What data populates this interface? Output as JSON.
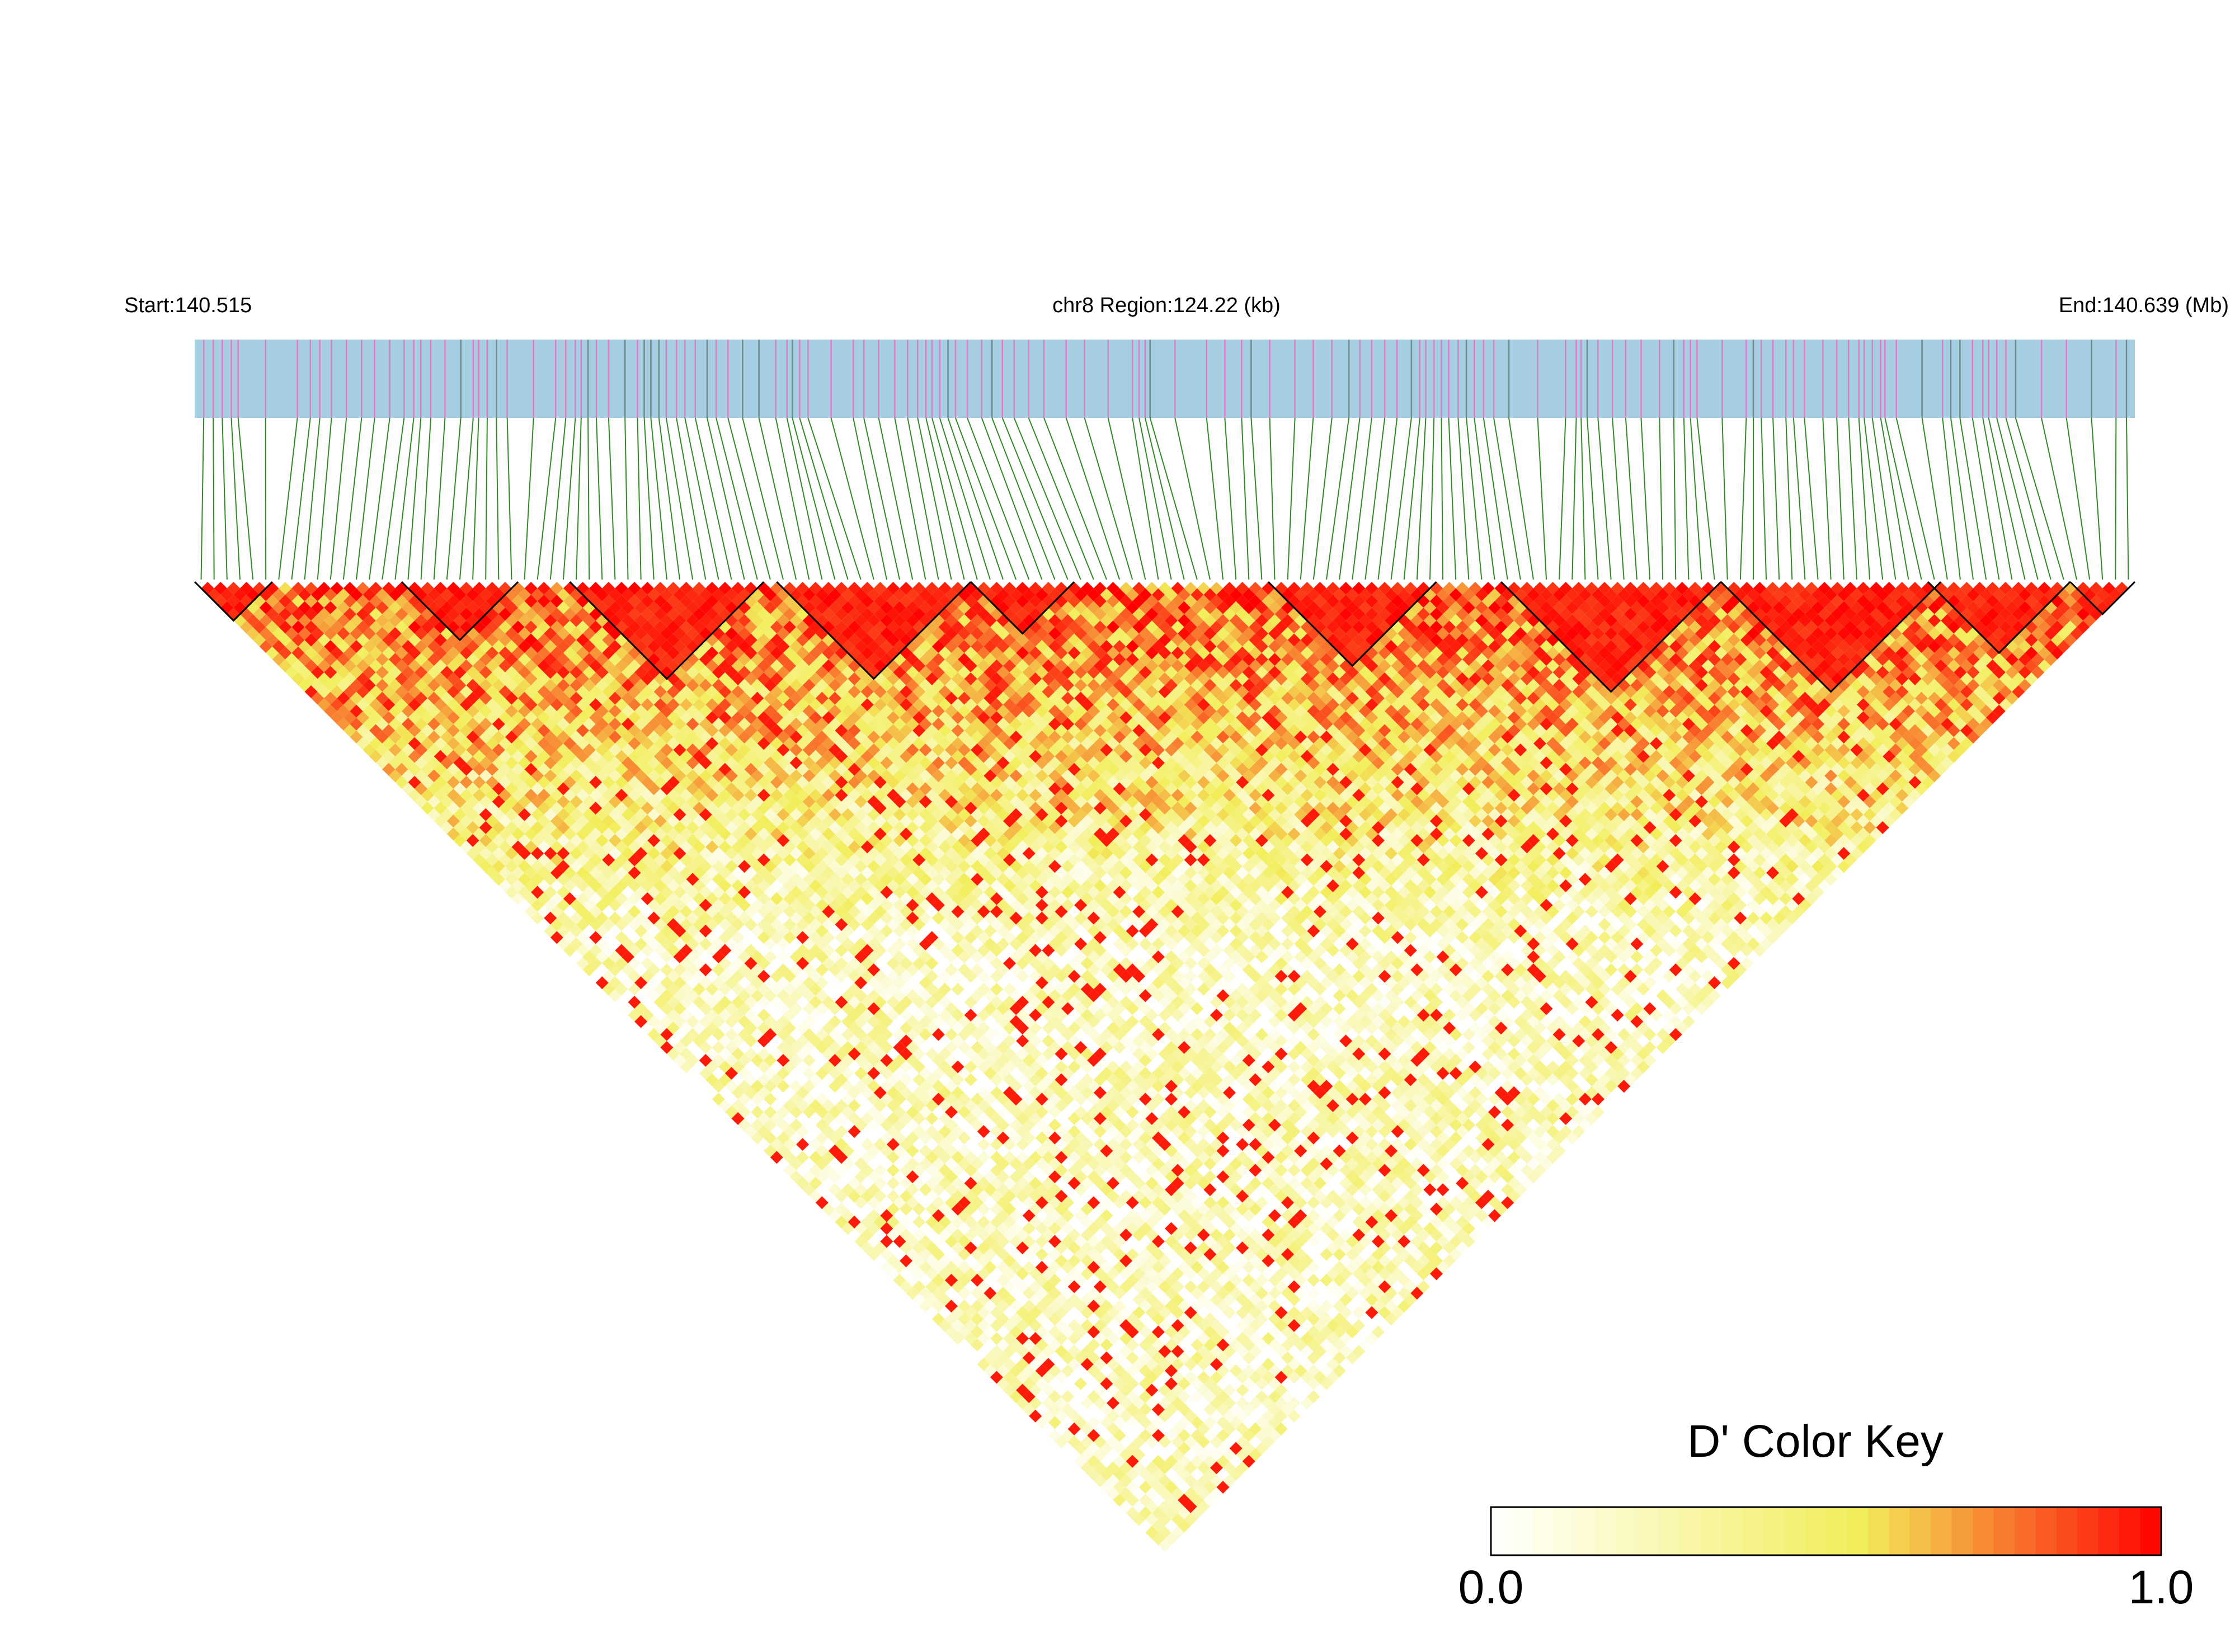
{
  "chart_data": {
    "type": "heatmap",
    "subtype": "linkage-disequilibrium-triangle",
    "header": {
      "start_label": "Start:140.515",
      "region_label": "chr8 Region:124.22 (kb)",
      "end_label": "End:140.639 (Mb)"
    },
    "region": {
      "chromosome": "chr8",
      "start_mb": 140.515,
      "end_mb": 140.639,
      "length_kb": 124.22
    },
    "snp_track": {
      "background_color": "#a6cee3",
      "marker_colors": [
        "#e07ac8",
        "#6e8a8a"
      ]
    },
    "connector_color": "#2e8b22",
    "block_outline_color": "#000000",
    "ld_blocks_description": "LD blocks outlined in black along the top edge of the triangle",
    "color_key": {
      "title": "D' Color Key",
      "min_label": "0.0",
      "max_label": "1.0",
      "vmin": 0.0,
      "vmax": 1.0,
      "colors": [
        "#ffffff",
        "#f2ee5a",
        "#ff0000"
      ]
    },
    "value_metric": "D'"
  }
}
